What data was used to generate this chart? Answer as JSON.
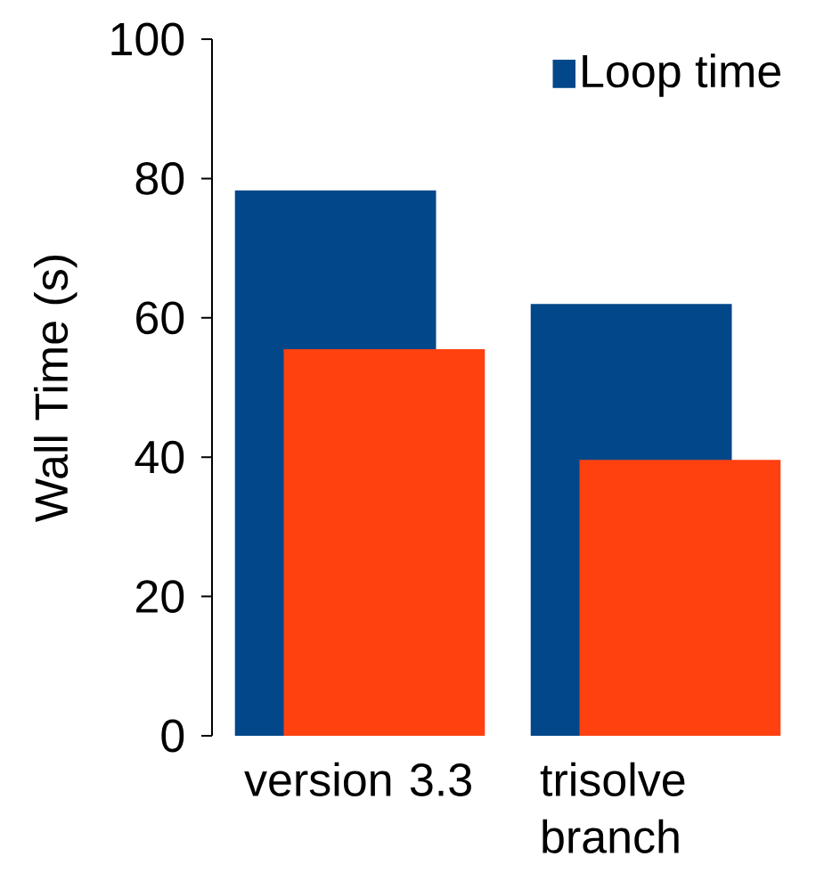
{
  "chart_data": {
    "type": "bar",
    "ylabel": "Wall Time (s)",
    "categories": [
      "version 3.3",
      "trisolve branch"
    ],
    "series": [
      {
        "name": "Loop time",
        "color": "#02478a",
        "values": [
          78.3,
          62.0
        ]
      },
      {
        "color": "#ff4110",
        "values": [
          55.5,
          39.6
        ]
      }
    ],
    "ylim": [
      0,
      100
    ],
    "yticks": [
      0,
      20,
      40,
      60,
      80,
      100
    ],
    "legend": "top right"
  }
}
